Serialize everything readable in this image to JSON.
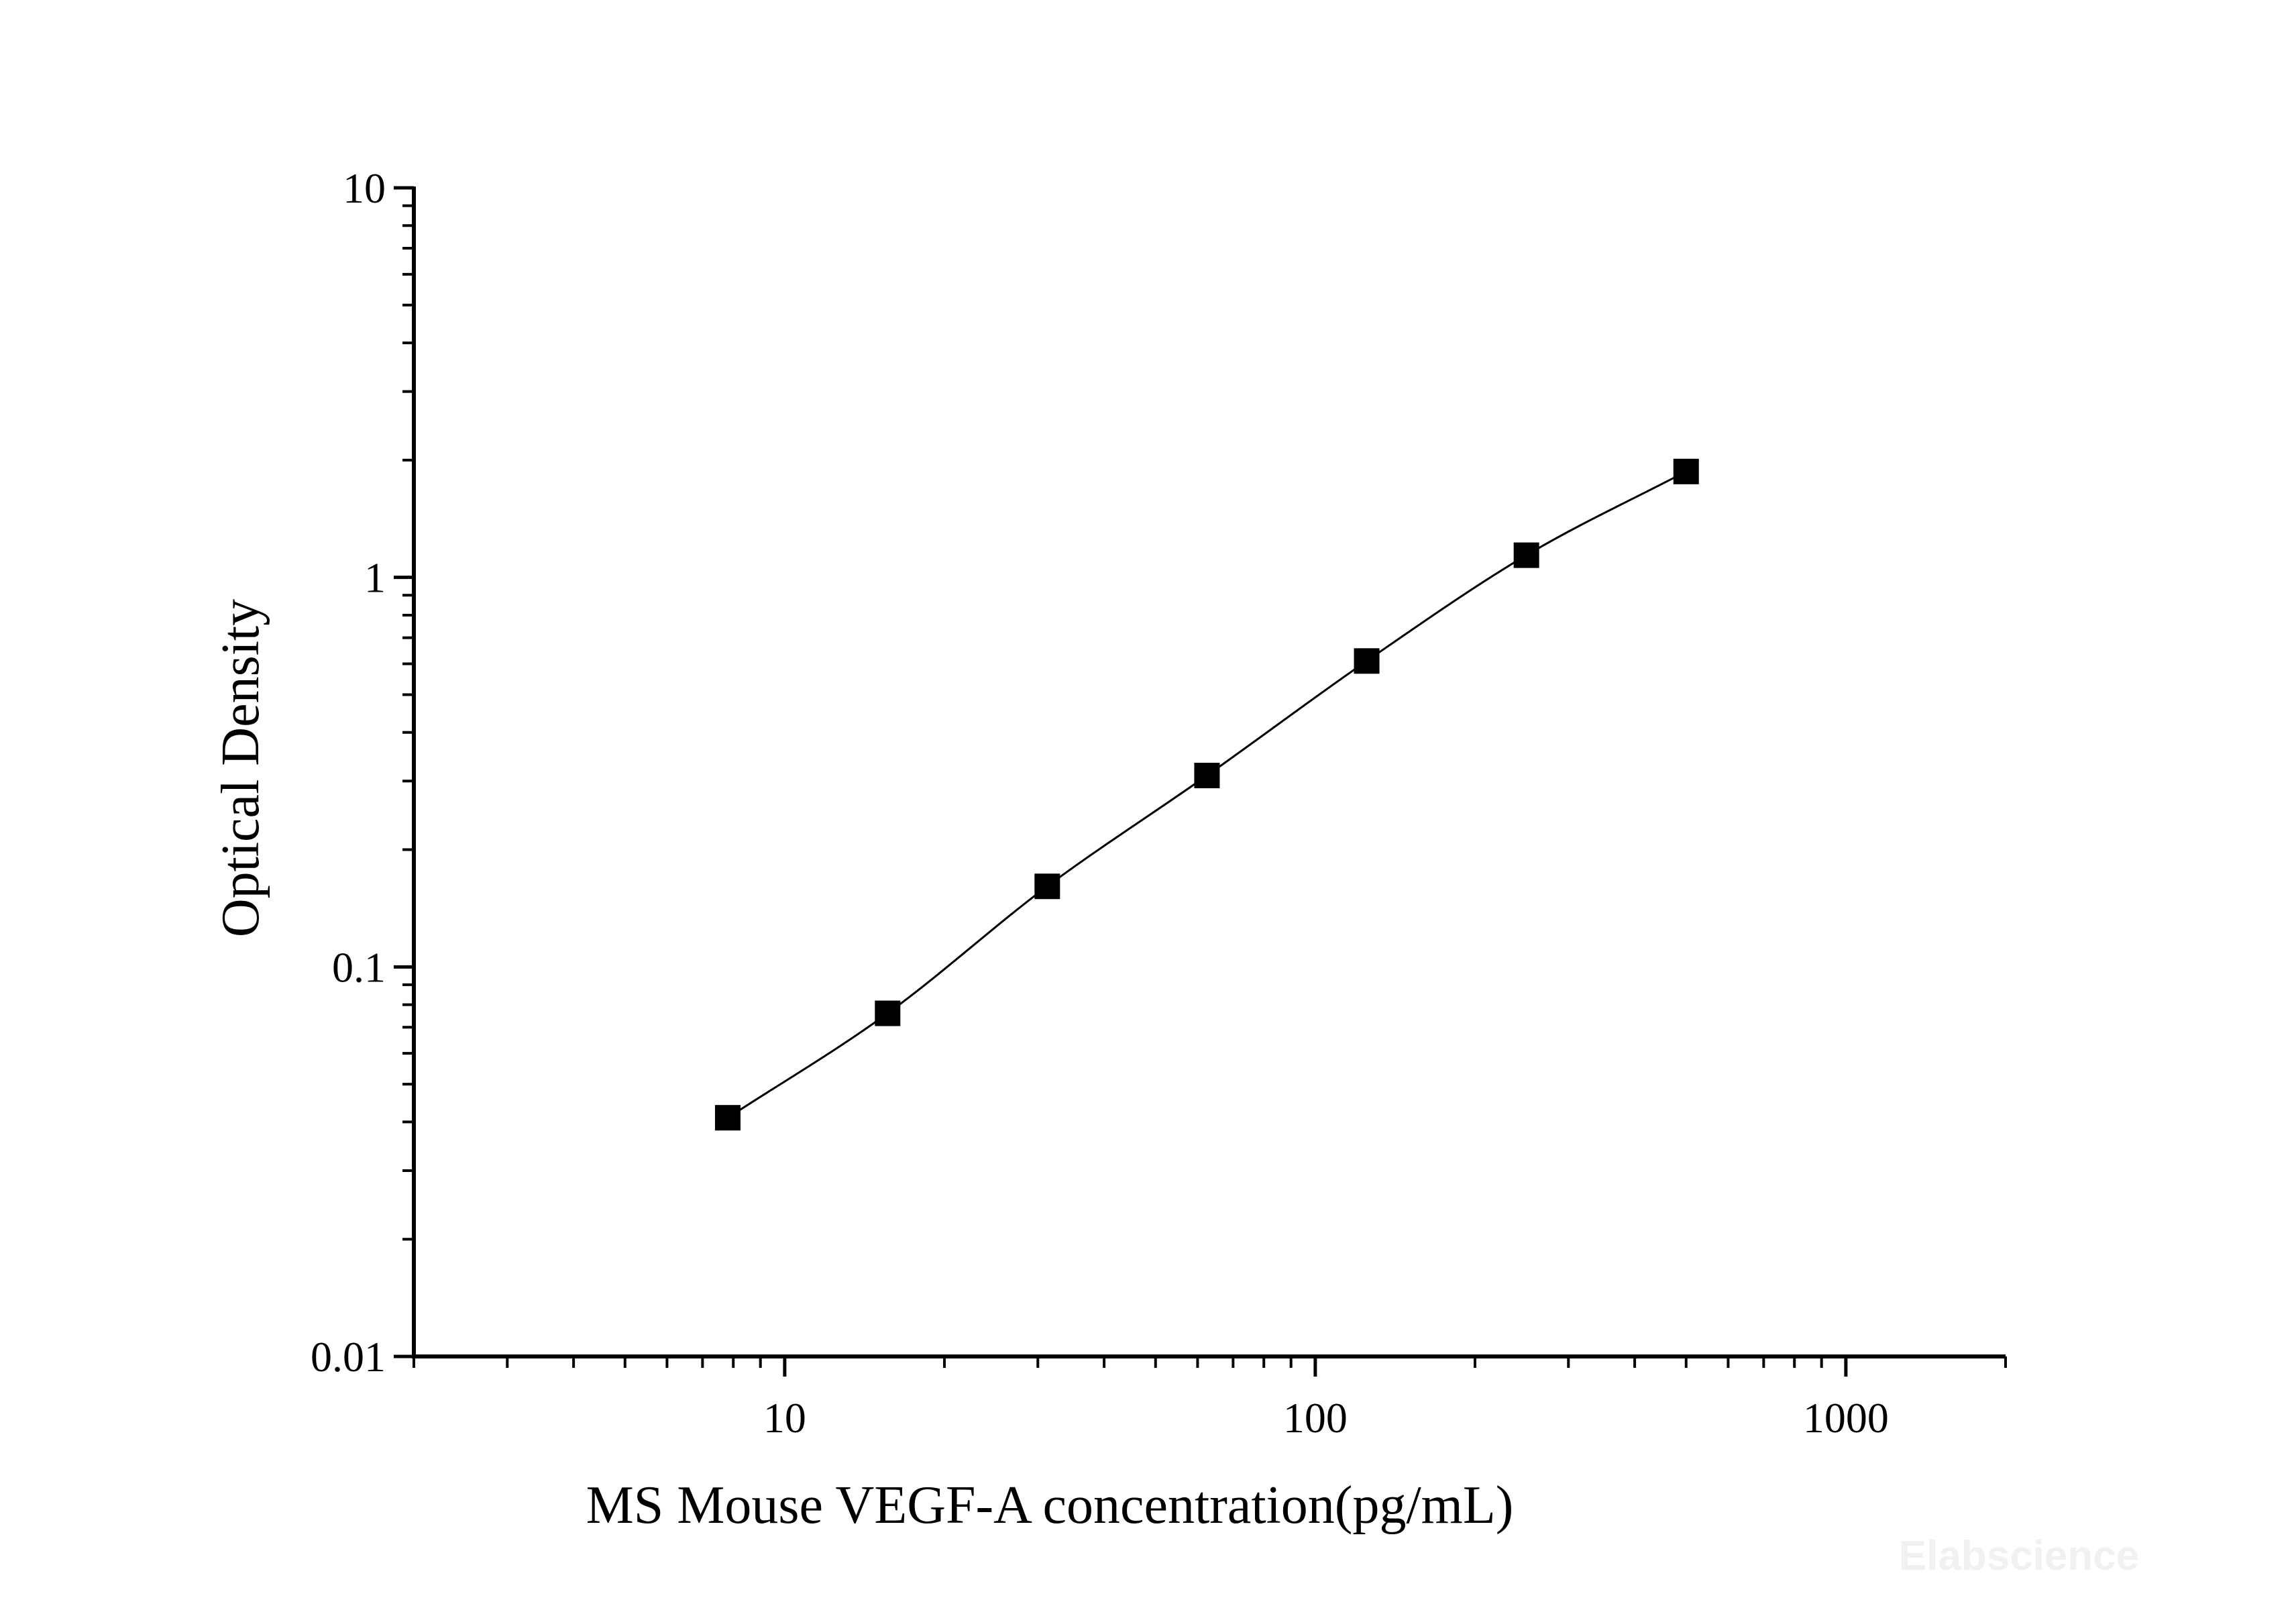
{
  "chart_data": {
    "type": "scatter",
    "x_scale": "log",
    "y_scale": "log",
    "xlim": [
      2,
      2000
    ],
    "ylim": [
      0.01,
      10
    ],
    "xlabel": "MS Mouse VEGF-A concentration(pg/mL)",
    "ylabel": "Optical Density",
    "x_ticks": [
      {
        "value": 10,
        "label": "10"
      },
      {
        "value": 100,
        "label": "100"
      },
      {
        "value": 1000,
        "label": "1000"
      }
    ],
    "y_ticks": [
      {
        "value": 0.01,
        "label": "0.01"
      },
      {
        "value": 0.1,
        "label": "0.1"
      },
      {
        "value": 1,
        "label": "1"
      },
      {
        "value": 10,
        "label": "10"
      }
    ],
    "grid": false,
    "fit_curve": true,
    "marker": "square",
    "series": [
      {
        "x": [
          7.81,
          15.63,
          31.25,
          62.5,
          125,
          250,
          500
        ],
        "y": [
          0.041,
          0.076,
          0.161,
          0.31,
          0.61,
          1.14,
          1.87
        ]
      }
    ],
    "colors": {
      "marker": "#000000",
      "line": "#000000",
      "axis": "#000000"
    }
  },
  "watermark": "Elabscience"
}
